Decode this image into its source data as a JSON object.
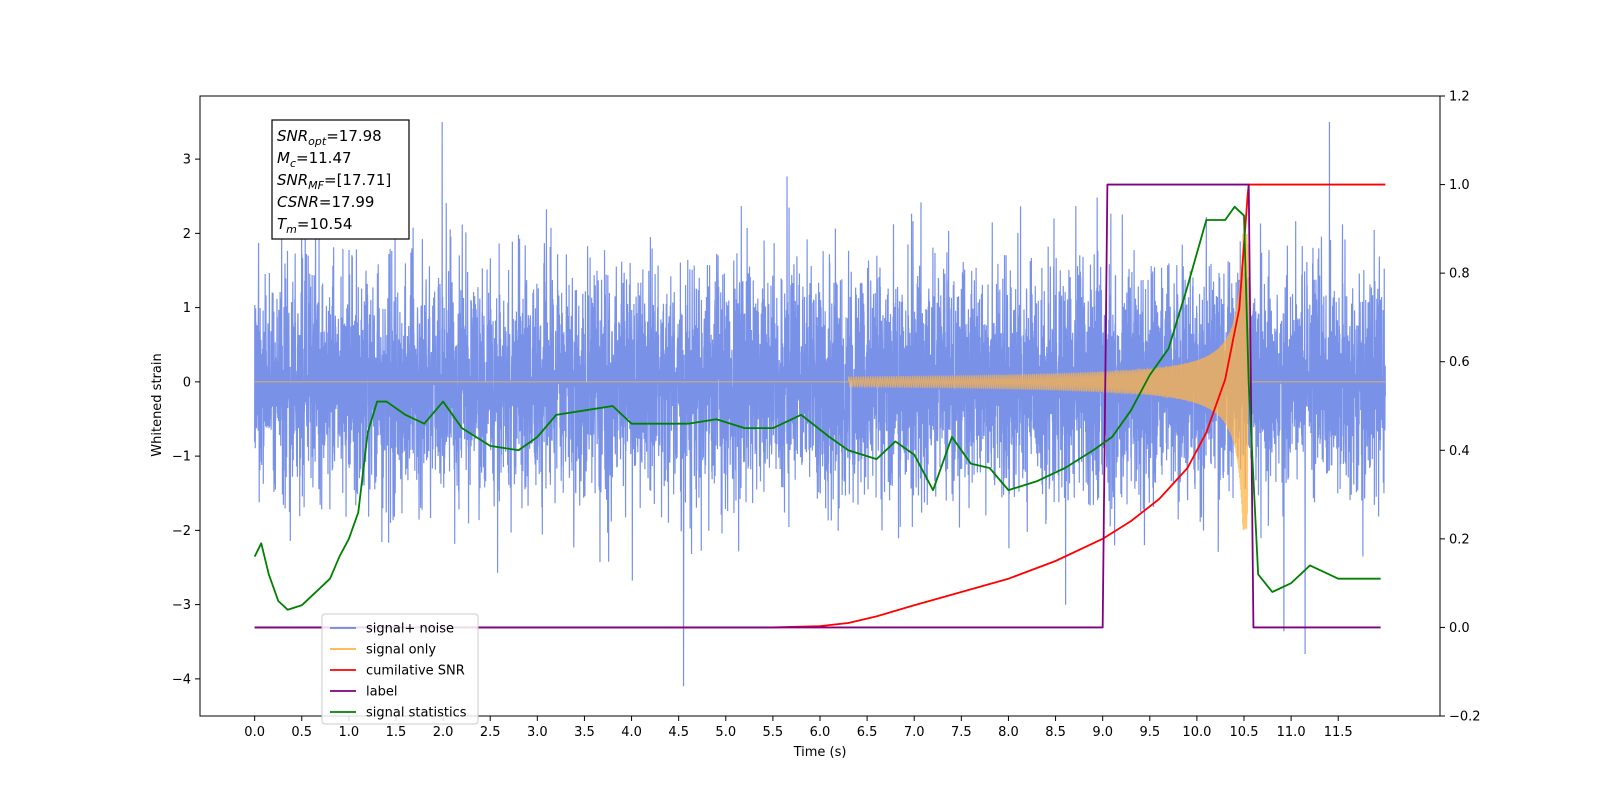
{
  "chart_data": {
    "type": "line",
    "xlabel": "Time (s)",
    "ylabel": "Whitened strain",
    "xlim": [
      -0.58,
      12.58
    ],
    "ylim": [
      -4.5,
      3.85
    ],
    "y2lim": [
      -0.2,
      1.2
    ],
    "x_ticks": [
      "0.0",
      "0.5",
      "1.0",
      "1.5",
      "2.0",
      "2.5",
      "3.0",
      "3.5",
      "4.0",
      "4.5",
      "5.0",
      "5.5",
      "6.0",
      "6.5",
      "7.0",
      "7.5",
      "8.0",
      "8.5",
      "9.0",
      "9.5",
      "10.0",
      "10.5",
      "11.0",
      "11.5"
    ],
    "x_tick_values": [
      0,
      0.5,
      1,
      1.5,
      2,
      2.5,
      3,
      3.5,
      4,
      4.5,
      5,
      5.5,
      6,
      6.5,
      7,
      7.5,
      8,
      8.5,
      9,
      9.5,
      10,
      10.5,
      11,
      11.5
    ],
    "y_ticks": [
      "3",
      "2",
      "1",
      "0",
      "−1",
      "−2",
      "−3",
      "−4"
    ],
    "y_tick_values": [
      3,
      2,
      1,
      0,
      -1,
      -2,
      -3,
      -4
    ],
    "y2_ticks": [
      "1.2",
      "1.0",
      "0.8",
      "0.6",
      "0.4",
      "0.2",
      "0.0",
      "−0.2"
    ],
    "y2_tick_values": [
      1.2,
      1.0,
      0.8,
      0.6,
      0.4,
      0.2,
      0.0,
      -0.2
    ],
    "annotations": [
      {
        "name": "SNR",
        "sub": "opt",
        "value": "=17.98"
      },
      {
        "name": "M",
        "sub": "c",
        "value": "=11.47"
      },
      {
        "name": "SNR",
        "sub": "MF",
        "value": "=[17.71]"
      },
      {
        "name": "CSNR",
        "sub": "",
        "value": "=17.99"
      },
      {
        "name": "T",
        "sub": "m",
        "value": "=10.54"
      }
    ],
    "legend_position": "lower-left",
    "series": [
      {
        "name": "signal+ noise",
        "color": "#6a86e6",
        "axis": "left",
        "description_values": {
          "x_range": [
            0,
            12
          ],
          "noise_sigma": 0.75,
          "max_value": 3.5,
          "min_value": -4.1
        }
      },
      {
        "name": "signal only",
        "color": "#ffb347",
        "axis": "left",
        "chirp": {
          "start": 6.3,
          "merger": 10.54,
          "peak_amplitude": 2.0
        }
      },
      {
        "name": "cumilative SNR",
        "color": "#ff0000",
        "axis": "right",
        "x": [
          0.0,
          5.5,
          6.0,
          6.3,
          6.6,
          7.0,
          7.5,
          8.0,
          8.5,
          9.0,
          9.3,
          9.6,
          9.9,
          10.1,
          10.3,
          10.45,
          10.54,
          10.55,
          12.0
        ],
        "y": [
          0.0,
          0.0,
          0.003,
          0.01,
          0.025,
          0.05,
          0.08,
          0.11,
          0.15,
          0.2,
          0.24,
          0.29,
          0.36,
          0.44,
          0.56,
          0.72,
          0.98,
          1.0,
          1.0
        ]
      },
      {
        "name": "label",
        "color": "#800080",
        "axis": "right",
        "x": [
          0.0,
          9.0,
          9.05,
          10.55,
          10.6,
          11.95
        ],
        "y": [
          0.0,
          0.0,
          1.0,
          1.0,
          0.0,
          0.0
        ]
      },
      {
        "name": "signal statistics",
        "color": "#008000",
        "axis": "right",
        "x": [
          0.0,
          0.07,
          0.15,
          0.25,
          0.35,
          0.5,
          0.6,
          0.7,
          0.8,
          0.9,
          1.0,
          1.1,
          1.2,
          1.3,
          1.4,
          1.6,
          1.8,
          2.0,
          2.2,
          2.5,
          2.8,
          3.0,
          3.2,
          3.5,
          3.8,
          4.0,
          4.3,
          4.6,
          4.9,
          5.2,
          5.5,
          5.8,
          6.1,
          6.3,
          6.6,
          6.8,
          7.0,
          7.2,
          7.4,
          7.6,
          7.8,
          8.0,
          8.3,
          8.6,
          8.9,
          9.1,
          9.3,
          9.5,
          9.7,
          9.9,
          10.1,
          10.3,
          10.4,
          10.5,
          10.55,
          10.65,
          10.8,
          11.0,
          11.2,
          11.5,
          11.8,
          11.95
        ],
        "y": [
          0.16,
          0.19,
          0.12,
          0.06,
          0.04,
          0.05,
          0.07,
          0.09,
          0.11,
          0.16,
          0.2,
          0.26,
          0.44,
          0.51,
          0.51,
          0.48,
          0.46,
          0.51,
          0.45,
          0.41,
          0.4,
          0.43,
          0.48,
          0.49,
          0.5,
          0.46,
          0.46,
          0.46,
          0.47,
          0.45,
          0.45,
          0.48,
          0.43,
          0.4,
          0.38,
          0.42,
          0.39,
          0.31,
          0.43,
          0.37,
          0.36,
          0.31,
          0.33,
          0.36,
          0.4,
          0.43,
          0.49,
          0.57,
          0.63,
          0.77,
          0.92,
          0.92,
          0.95,
          0.93,
          0.55,
          0.12,
          0.08,
          0.1,
          0.14,
          0.11,
          0.11,
          0.11
        ]
      }
    ]
  }
}
